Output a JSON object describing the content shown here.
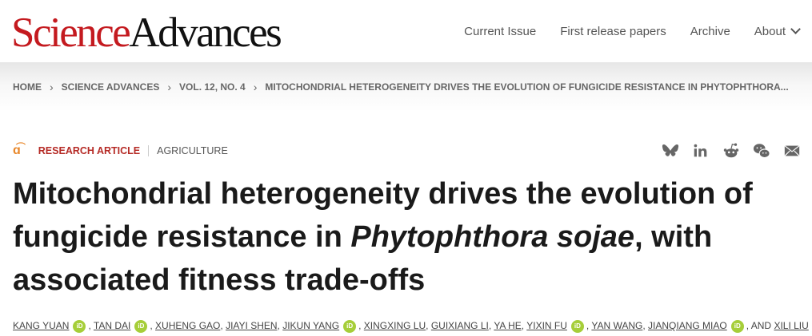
{
  "header": {
    "logo_science": "Science",
    "logo_advances": "Advances",
    "nav": [
      "Current Issue",
      "First release papers",
      "Archive",
      "About"
    ]
  },
  "breadcrumb": [
    "HOME",
    "SCIENCE ADVANCES",
    "VOL. 12, NO. 4",
    "MITOCHONDRIAL HETEROGENEITY DRIVES THE EVOLUTION OF FUNGICIDE RESISTANCE IN PHYTOPHTHORA..."
  ],
  "meta": {
    "type": "RESEARCH ARTICLE",
    "subject": "AGRICULTURE",
    "share_icons": [
      "bluesky-icon",
      "linkedin-icon",
      "reddit-icon",
      "wechat-icon",
      "email-icon"
    ]
  },
  "title": {
    "part1": "Mitochondrial heterogeneity drives the evolution of fungicide resistance in ",
    "italic": "Phytophthora sojae",
    "part2": ", with associated fitness trade-offs"
  },
  "authors": [
    {
      "name": "KANG YUAN",
      "orcid": true
    },
    {
      "name": "TAN DAI",
      "orcid": true
    },
    {
      "name": "XUHENG GAO",
      "orcid": false
    },
    {
      "name": "JIAYI SHEN",
      "orcid": false
    },
    {
      "name": "JIKUN YANG",
      "orcid": true
    },
    {
      "name": "XINGXING LU",
      "orcid": false
    },
    {
      "name": "GUIXIANG LI",
      "orcid": false
    },
    {
      "name": "YA HE",
      "orcid": false
    },
    {
      "name": "YIXIN FU",
      "orcid": true
    },
    {
      "name": "YAN WANG",
      "orcid": false
    },
    {
      "name": "JIANQIANG MIAO",
      "orcid": true
    },
    {
      "name": "XILI LIU",
      "orcid": false
    }
  ],
  "authors_and": "AND",
  "colors": {
    "brand_red": "#c41a1f",
    "orcid_green": "#a6ce39",
    "open_access": "#e8872a"
  }
}
